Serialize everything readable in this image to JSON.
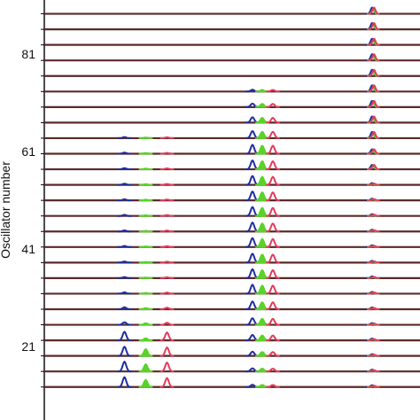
{
  "chart_data": {
    "type": "line",
    "title": "",
    "ylabel": "Oscillator number",
    "xlabel": "",
    "y_ticks": [
      "81",
      "61",
      "41",
      "21"
    ],
    "y_tick_values": [
      81,
      61,
      41,
      21
    ],
    "rows_visible": 26,
    "series": [
      {
        "name": "",
        "color": "#1f2f9c"
      },
      {
        "name": "",
        "color": "#5ad22a"
      },
      {
        "name": "",
        "color": "#e23c5c"
      }
    ],
    "trace_color": "#5a2a2a",
    "peak_groups_x": [
      0.27,
      0.58,
      0.875
    ]
  }
}
